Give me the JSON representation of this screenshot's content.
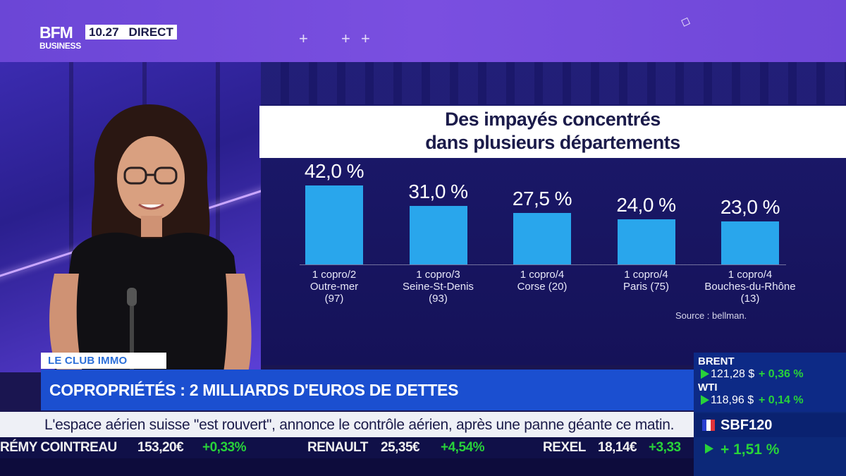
{
  "broadcast": {
    "logo_main": "BFM",
    "logo_sub": "BUSINESS",
    "time": "10.27",
    "live_label": "DIRECT"
  },
  "infographic": {
    "title_line1": "Des impayés concentrés",
    "title_line2": "dans plusieurs départements",
    "source": "Source : bellman."
  },
  "chart_data": {
    "type": "bar",
    "title": "Des impayés concentrés dans plusieurs départements",
    "categories": [
      "1 copro/2 Outre-mer (97)",
      "1 copro/3 Seine-St-Denis (93)",
      "1 copro/4 Corse (20)",
      "1 copro/4 Paris (75)",
      "1 copro/4 Bouches-du-Rhône (13)"
    ],
    "category_lines": [
      [
        "1 copro/2",
        "Outre-mer",
        "(97)"
      ],
      [
        "1 copro/3",
        "Seine-St-Denis",
        "(93)"
      ],
      [
        "1 copro/4",
        "Corse (20)"
      ],
      [
        "1 copro/4",
        "Paris (75)"
      ],
      [
        "1 copro/4",
        "Bouches-du-Rhône",
        "(13)"
      ]
    ],
    "values": [
      42.0,
      31.0,
      27.5,
      24.0,
      23.0
    ],
    "value_labels": [
      "42,0 %",
      "31,0 %",
      "27,5 %",
      "24,0 %",
      "23,0 %"
    ],
    "unit": "%",
    "bar_color": "#29a6ec",
    "xlabel": "",
    "ylabel": "",
    "grid": false
  },
  "lower_third": {
    "show_label": "LE CLUB IMMO",
    "headline": "COPROPRIÉTÉS : 2 MILLIARDS D'EUROS DE DETTES",
    "news_ticker": "L'espace aérien suisse \"est rouvert\", annonce le contrôle aérien, après une panne géante ce matin."
  },
  "stock_ticker": [
    {
      "name": "RÉMY COINTREAU",
      "price": "153,20€",
      "change": "+0,33%"
    },
    {
      "name": "RENAULT",
      "price": "25,35€",
      "change": "+4,54%"
    },
    {
      "name": "REXEL",
      "price": "18,14€",
      "change": "+3,33"
    }
  ],
  "markets": [
    {
      "name": "BRENT",
      "value": "121,28 $",
      "change": "+ 0,36 %"
    },
    {
      "name": "WTI",
      "value": "118,96 $",
      "change": "+ 0,14 %"
    }
  ],
  "index": {
    "name": "SBF120",
    "change": "+ 1,51 %"
  },
  "colors": {
    "accent_purple": "#7a4fe0",
    "headline_blue": "#1b4fd0",
    "positive_green": "#28d23a"
  }
}
